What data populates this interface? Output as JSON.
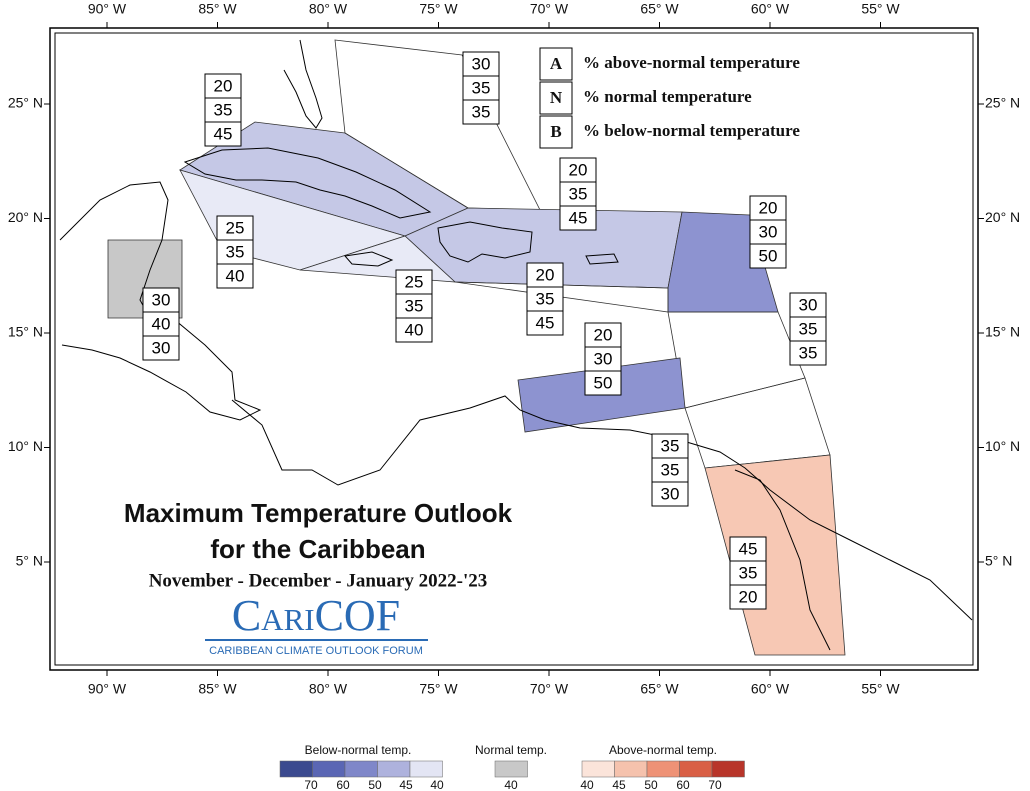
{
  "map": {
    "lon_labels": [
      "90° W",
      "85° W",
      "80° W",
      "75° W",
      "70° W",
      "65° W",
      "60° W",
      "55° W"
    ],
    "lat_labels": [
      "25° N",
      "20° N",
      "15° N",
      "10° N",
      "5° N"
    ]
  },
  "key": [
    {
      "letter": "A",
      "text": "% above-normal temperature"
    },
    {
      "letter": "N",
      "text": "% normal temperature"
    },
    {
      "letter": "B",
      "text": "% below-normal temperature"
    }
  ],
  "regions": [
    {
      "A": 20,
      "N": 35,
      "B": 45
    },
    {
      "A": 30,
      "N": 35,
      "B": 35
    },
    {
      "A": 20,
      "N": 35,
      "B": 45
    },
    {
      "A": 20,
      "N": 30,
      "B": 50
    },
    {
      "A": 25,
      "N": 35,
      "B": 40
    },
    {
      "A": 30,
      "N": 40,
      "B": 30
    },
    {
      "A": 25,
      "N": 35,
      "B": 40
    },
    {
      "A": 20,
      "N": 35,
      "B": 45
    },
    {
      "A": 30,
      "N": 35,
      "B": 35
    },
    {
      "A": 20,
      "N": 30,
      "B": 50
    },
    {
      "A": 35,
      "N": 35,
      "B": 30
    },
    {
      "A": 45,
      "N": 35,
      "B": 20
    }
  ],
  "title": "Maximum Temperature Outlook",
  "title_line2": "for the Caribbean",
  "season": "November - December - January 2022-'23",
  "logo": {
    "name": "CariCOF",
    "tagline": "CARIBBEAN CLIMATE OUTLOOK FORUM"
  },
  "legend": {
    "below": {
      "title": "Below-normal temp.",
      "labels": [
        70,
        60,
        50,
        45,
        40
      ]
    },
    "normal": {
      "title": "Normal temp.",
      "labels": [
        40
      ]
    },
    "above": {
      "title": "Above-normal temp.",
      "labels": [
        40,
        45,
        50,
        60,
        70
      ]
    }
  }
}
